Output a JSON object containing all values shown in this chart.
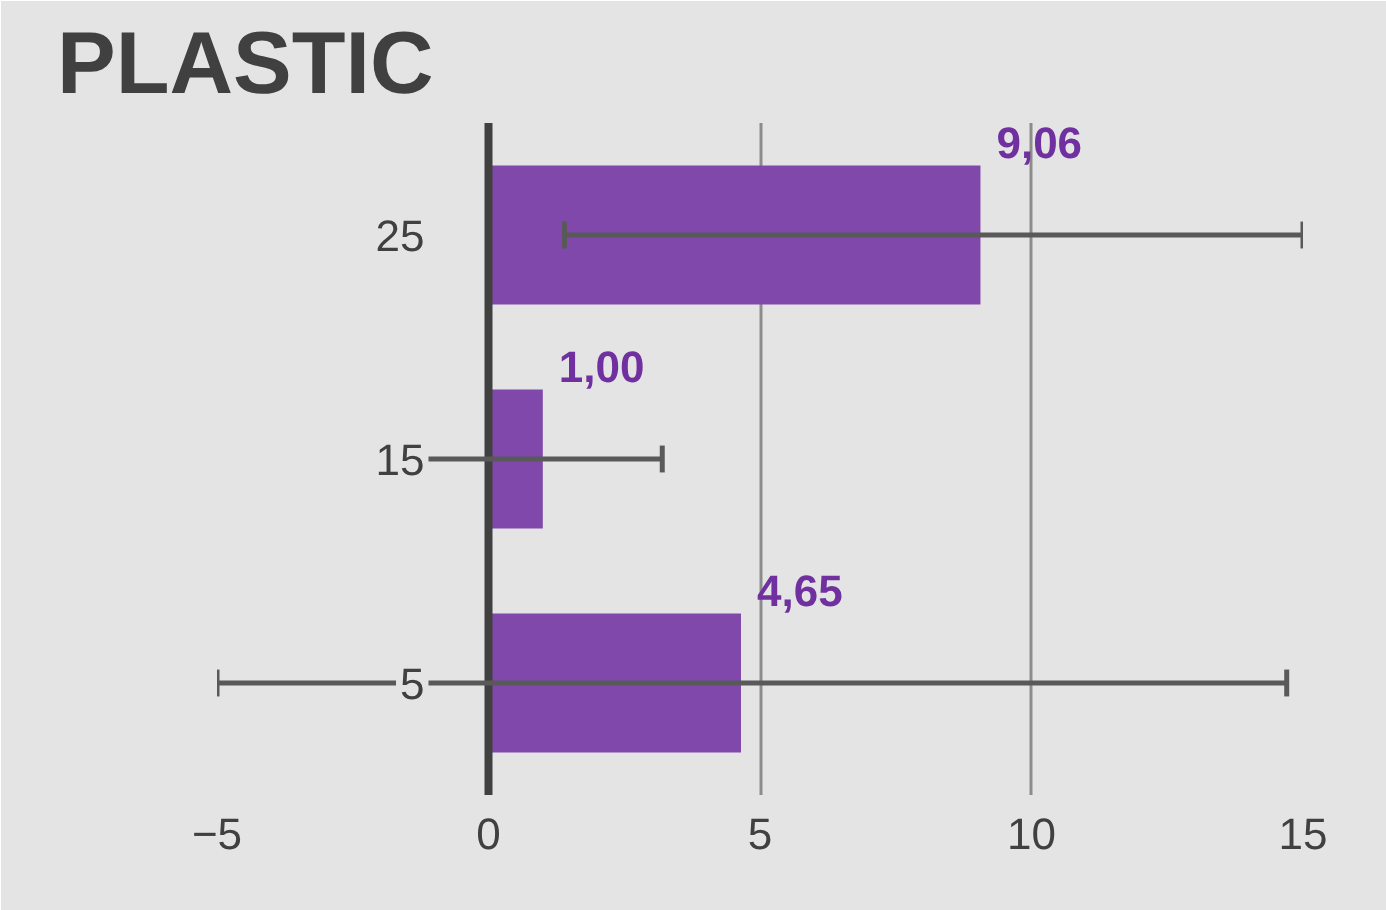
{
  "chart_data": {
    "type": "bar",
    "orientation": "horizontal",
    "title": "PLASTIC",
    "categories": [
      "25",
      "15",
      "5"
    ],
    "values": [
      9.06,
      1.0,
      4.65
    ],
    "value_labels": [
      "9,06",
      "1,00",
      "4,65"
    ],
    "errors": [
      [
        1.4,
        15
      ],
      [
        -1.2,
        3.2
      ],
      [
        -5,
        14.7
      ]
    ],
    "color": "#7f48aa",
    "xlim": [
      -5,
      15
    ],
    "xticks": [
      -5,
      0,
      5,
      10,
      15
    ],
    "grid": "x"
  }
}
